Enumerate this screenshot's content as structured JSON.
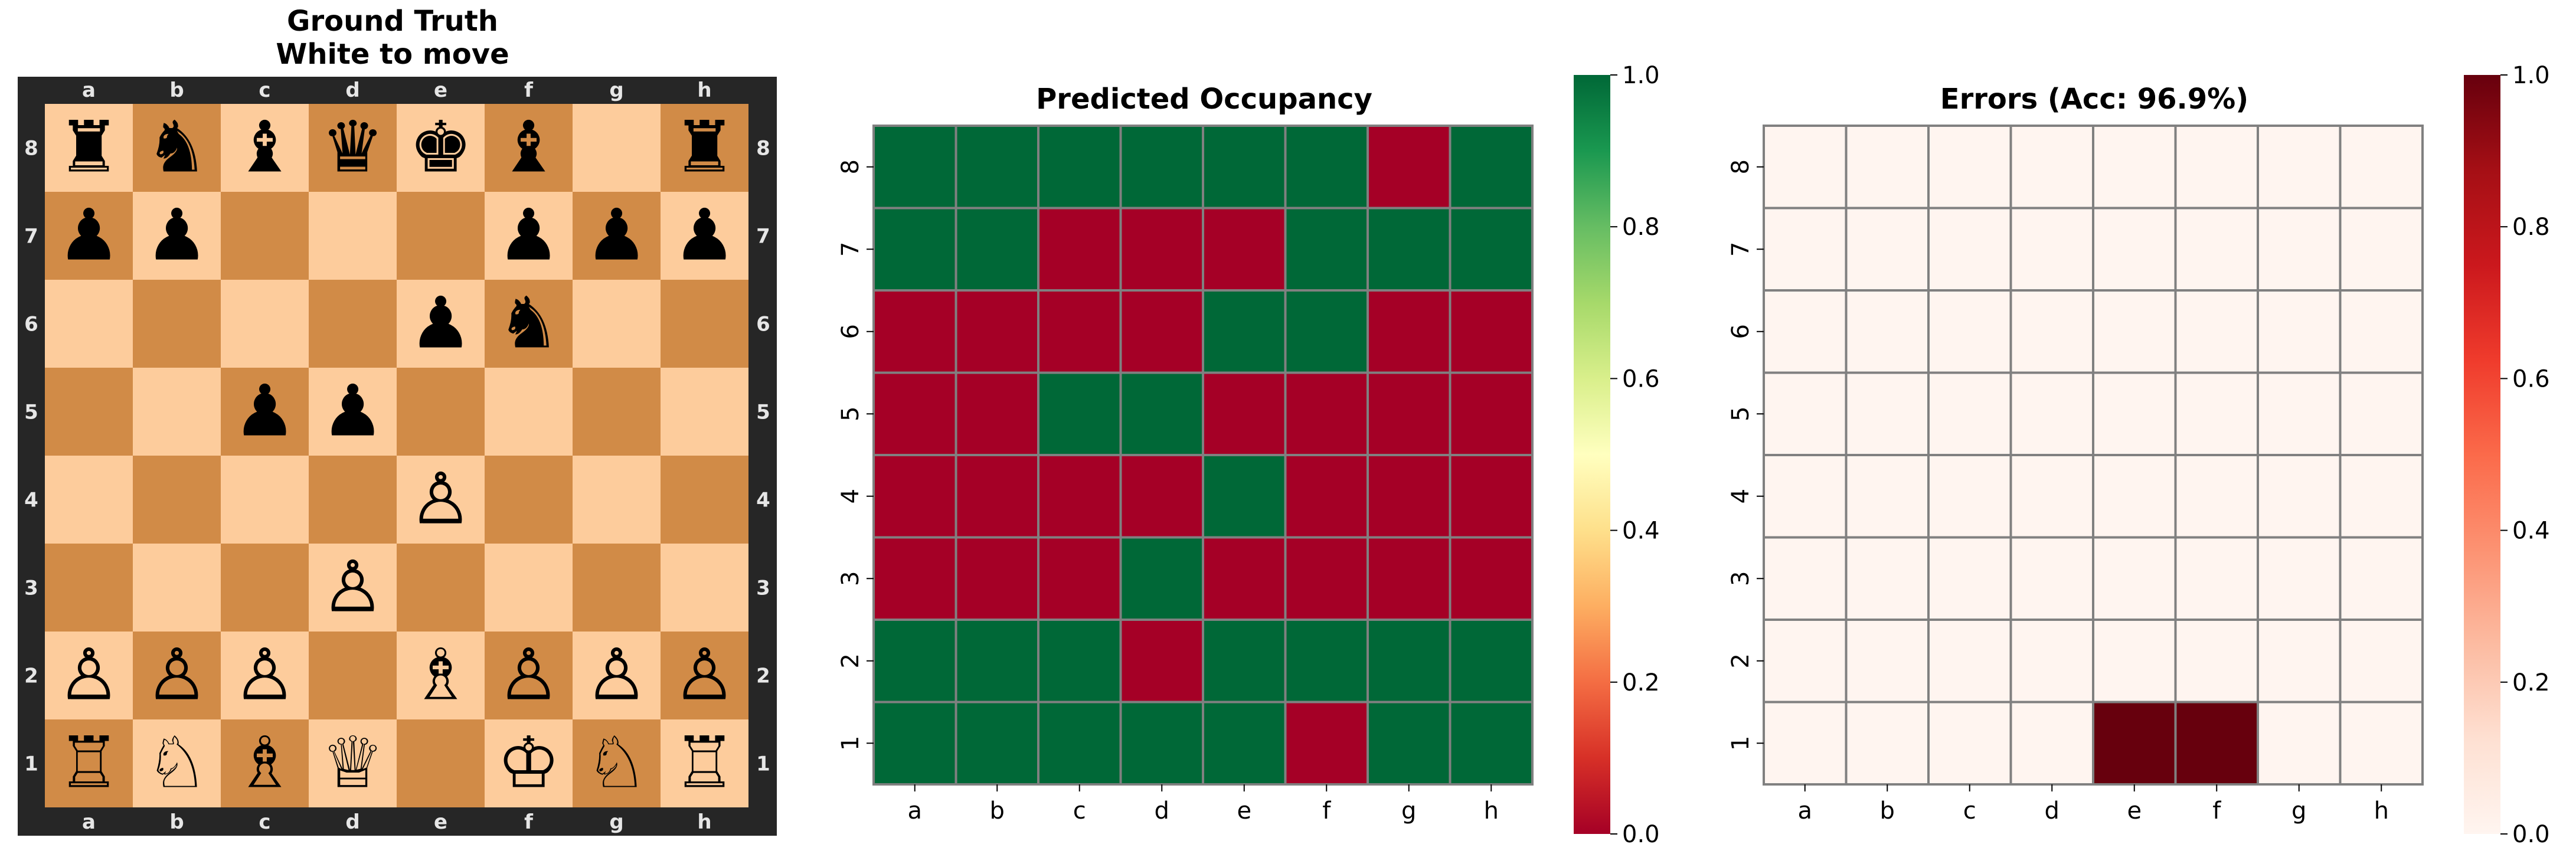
{
  "left_panel": {
    "title_line1": "Ground Truth",
    "title_line2": "White to move",
    "files": [
      "a",
      "b",
      "c",
      "d",
      "e",
      "f",
      "g",
      "h"
    ],
    "ranks": [
      "8",
      "7",
      "6",
      "5",
      "4",
      "3",
      "2",
      "1"
    ],
    "board": [
      [
        "♜",
        "♞",
        "♝",
        "♛",
        "♚",
        "♝",
        "",
        "♜"
      ],
      [
        "♟",
        "♟",
        "",
        "",
        "",
        "♟",
        "♟",
        "♟"
      ],
      [
        "",
        "",
        "",
        "",
        "♟",
        "♞",
        "",
        ""
      ],
      [
        "",
        "",
        "♟",
        "♟",
        "",
        "",
        "",
        ""
      ],
      [
        "",
        "",
        "",
        "",
        "♙",
        "",
        "",
        ""
      ],
      [
        "",
        "",
        "",
        "♙",
        "",
        "",
        "",
        ""
      ],
      [
        "♙",
        "♙",
        "♙",
        "",
        "♗",
        "♙",
        "♙",
        "♙"
      ],
      [
        "♖",
        "♘",
        "♗",
        "♕",
        "",
        "♔",
        "♘",
        "♖"
      ]
    ],
    "colors": {
      "light": "#fdcc9c",
      "dark": "#d18b47",
      "frame": "#262626",
      "coord": "#e6e6e6"
    }
  },
  "chart_data": [
    {
      "type": "heatmap",
      "title": "Predicted Occupancy",
      "x_categories": [
        "a",
        "b",
        "c",
        "d",
        "e",
        "f",
        "g",
        "h"
      ],
      "y_categories": [
        "8",
        "7",
        "6",
        "5",
        "4",
        "3",
        "2",
        "1"
      ],
      "values": [
        [
          1,
          1,
          1,
          1,
          1,
          1,
          0,
          1
        ],
        [
          1,
          1,
          0,
          0,
          0,
          1,
          1,
          1
        ],
        [
          0,
          0,
          0,
          0,
          1,
          1,
          0,
          0
        ],
        [
          0,
          0,
          1,
          1,
          0,
          0,
          0,
          0
        ],
        [
          0,
          0,
          0,
          0,
          1,
          0,
          0,
          0
        ],
        [
          0,
          0,
          0,
          1,
          0,
          0,
          0,
          0
        ],
        [
          1,
          1,
          1,
          0,
          1,
          1,
          1,
          1
        ],
        [
          1,
          1,
          1,
          1,
          1,
          0,
          1,
          1
        ]
      ],
      "colormap": "RdYlGn",
      "vmin": 0,
      "vmax": 1,
      "colorbar_ticks": [
        "0.0",
        "0.2",
        "0.4",
        "0.6",
        "0.8",
        "1.0"
      ]
    },
    {
      "type": "heatmap",
      "title": "Errors (Acc: 96.9%)",
      "x_categories": [
        "a",
        "b",
        "c",
        "d",
        "e",
        "f",
        "g",
        "h"
      ],
      "y_categories": [
        "8",
        "7",
        "6",
        "5",
        "4",
        "3",
        "2",
        "1"
      ],
      "values": [
        [
          0,
          0,
          0,
          0,
          0,
          0,
          0,
          0
        ],
        [
          0,
          0,
          0,
          0,
          0,
          0,
          0,
          0
        ],
        [
          0,
          0,
          0,
          0,
          0,
          0,
          0,
          0
        ],
        [
          0,
          0,
          0,
          0,
          0,
          0,
          0,
          0
        ],
        [
          0,
          0,
          0,
          0,
          0,
          0,
          0,
          0
        ],
        [
          0,
          0,
          0,
          0,
          0,
          0,
          0,
          0
        ],
        [
          0,
          0,
          0,
          0,
          0,
          0,
          0,
          0
        ],
        [
          0,
          0,
          0,
          0,
          1,
          1,
          0,
          0
        ]
      ],
      "colormap": "Reds",
      "vmin": 0,
      "vmax": 1,
      "colorbar_ticks": [
        "0.0",
        "0.2",
        "0.4",
        "0.6",
        "0.8",
        "1.0"
      ]
    }
  ]
}
